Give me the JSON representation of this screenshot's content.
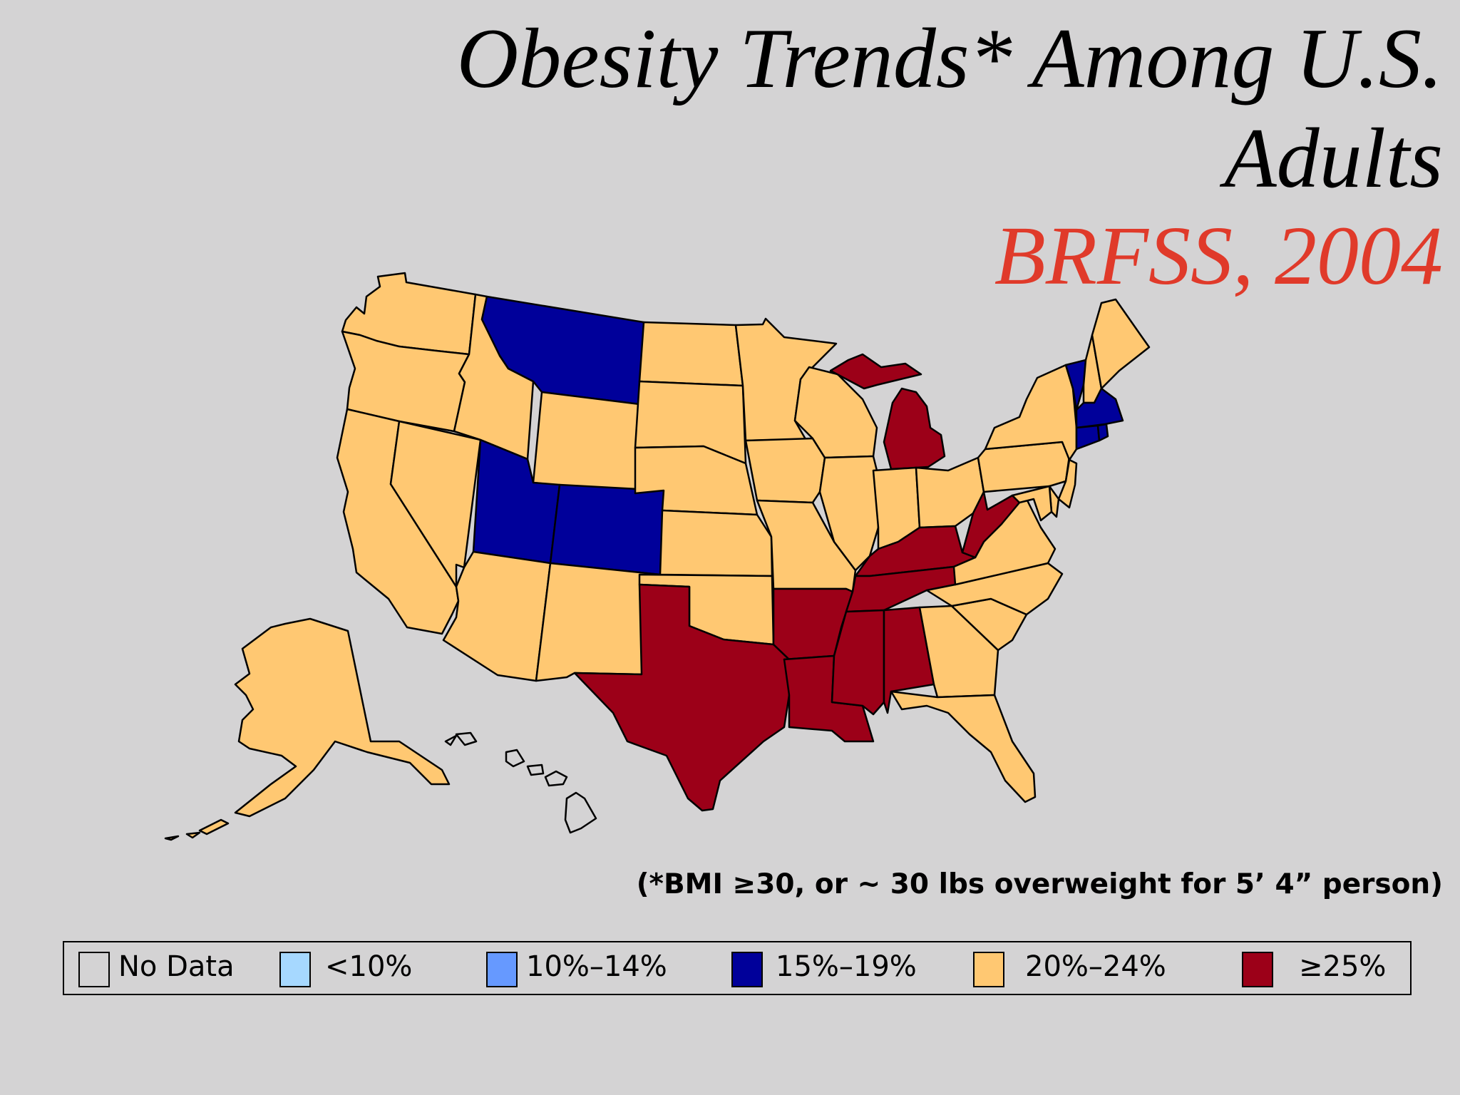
{
  "title": {
    "line1": "Obesity Trends* Among U.S.",
    "line2": "Adults",
    "line3": "BRFSS, 2004"
  },
  "footnote": "(*BMI ≥30, or ~ 30 lbs overweight for 5’ 4” person)",
  "colors": {
    "no_data": "#d4d3d4",
    "lt10": "#a6d8ff",
    "p10_14": "#6699ff",
    "p15_19": "#00009a",
    "p20_24": "#ffc872",
    "ge25": "#9c0018",
    "title_red": "#e03a2a"
  },
  "legend": [
    {
      "label": "No Data",
      "category": "no_data"
    },
    {
      "label": "<10%",
      "category": "lt10"
    },
    {
      "label": "10%–14%",
      "category": "p10_14"
    },
    {
      "label": "15%–19%",
      "category": "p15_19"
    },
    {
      "label": "20%–24%",
      "category": "p20_24"
    },
    {
      "label": "≥25%",
      "category": "ge25"
    }
  ],
  "states": {
    "WA": "p20_24",
    "OR": "p20_24",
    "CA": "p20_24",
    "NV": "p20_24",
    "ID": "p20_24",
    "MT": "p15_19",
    "WY": "p20_24",
    "UT": "p15_19",
    "CO": "p15_19",
    "AZ": "p20_24",
    "NM": "p20_24",
    "ND": "p20_24",
    "SD": "p20_24",
    "NE": "p20_24",
    "KS": "p20_24",
    "OK": "p20_24",
    "TX": "ge25",
    "MN": "p20_24",
    "IA": "p20_24",
    "MO": "p20_24",
    "AR": "ge25",
    "LA": "ge25",
    "WI": "p20_24",
    "IL": "p20_24",
    "MI": "ge25",
    "IN": "p20_24",
    "OH": "p20_24",
    "KY": "ge25",
    "TN": "ge25",
    "MS": "ge25",
    "AL": "ge25",
    "GA": "p20_24",
    "FL": "p20_24",
    "SC": "p20_24",
    "NC": "p20_24",
    "VA": "p20_24",
    "WV": "ge25",
    "PA": "p20_24",
    "NY": "p20_24",
    "NJ": "p20_24",
    "DE": "p20_24",
    "MD": "p20_24",
    "CT": "p15_19",
    "RI": "p15_19",
    "MA": "p15_19",
    "VT": "p15_19",
    "NH": "p20_24",
    "ME": "p20_24",
    "AK": "p20_24",
    "HI": "no_data"
  }
}
